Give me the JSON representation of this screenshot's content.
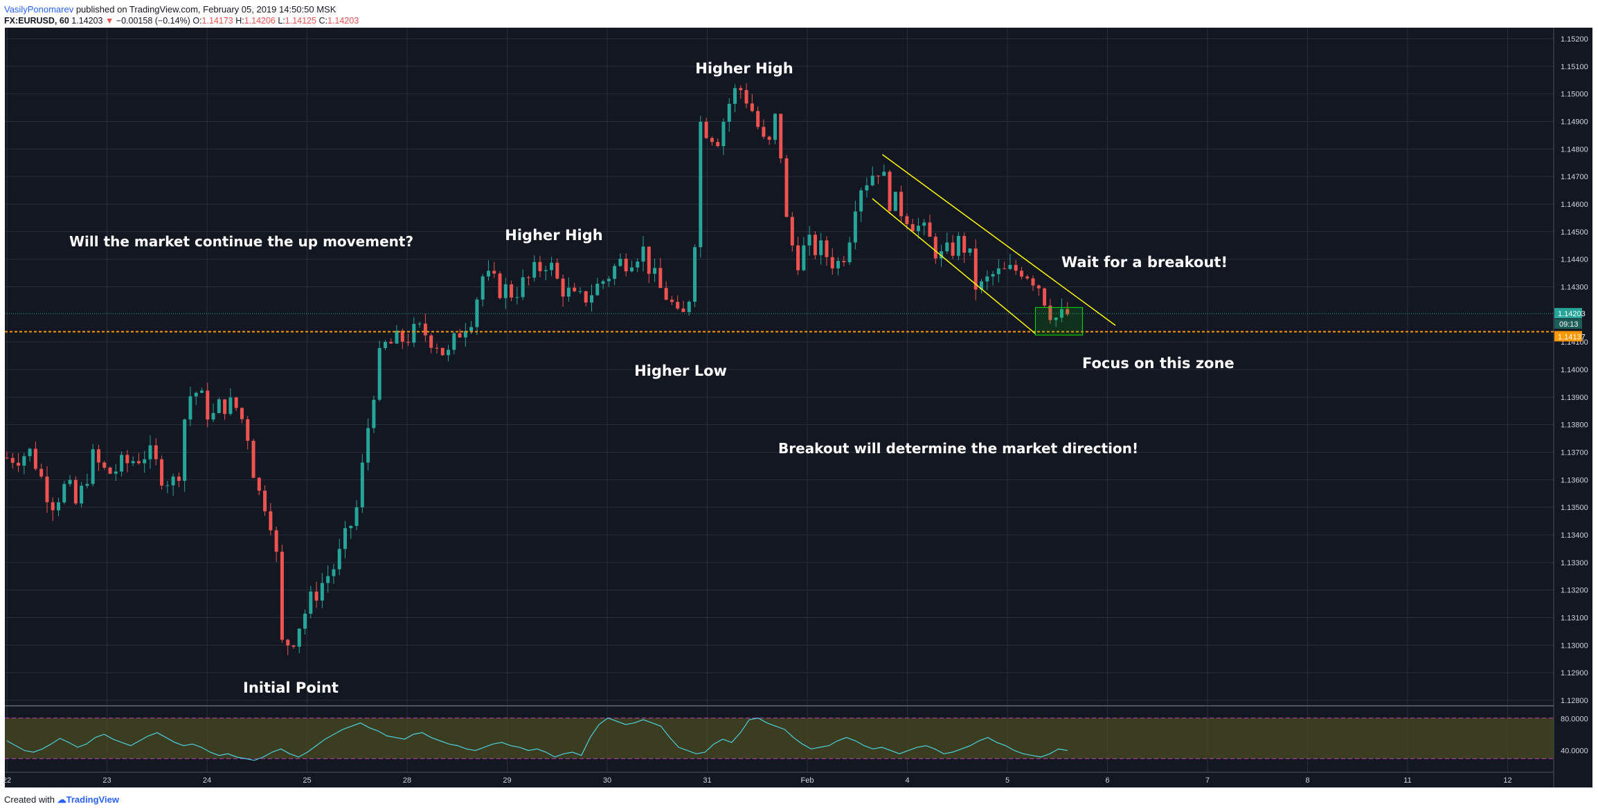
{
  "header": {
    "author": "VasilyPonomarev",
    "published": "published on TradingView.com, February 05, 2019 14:50:50 MSK",
    "symbol": "FX:EURUSD, 60",
    "last": "1.14203",
    "change": "−0.00158 (−0.14%)",
    "o_label": "O:",
    "o": "1.14173",
    "h_label": "H:",
    "h": "1.14206",
    "l_label": "L:",
    "l": "1.14125",
    "c_label": "C:",
    "c": "1.14203"
  },
  "footer": {
    "created_with": "Created with",
    "brand": "TradingView"
  },
  "colors": {
    "background": "#131722",
    "grid": "#2a2e39",
    "up": "#26a69a",
    "down": "#ef5350",
    "channel": "#ffff00",
    "support": "#ff9800",
    "last_price": "#26a69a",
    "zone": "#00e600",
    "rsi_line": "#4dd0e1",
    "rsi_band": "#4b4f1f",
    "rsi_levels": "#c040c0"
  },
  "chart_data": {
    "type": "candlestick",
    "symbol": "FX:EURUSD",
    "interval": "60",
    "y_ticks": [
      "1.15200",
      "1.15100",
      "1.15000",
      "1.14900",
      "1.14800",
      "1.14700",
      "1.14600",
      "1.14500",
      "1.14400",
      "1.14300",
      "1.14100",
      "1.14000",
      "1.13900",
      "1.13800",
      "1.13700",
      "1.13600",
      "1.13500",
      "1.13400",
      "1.13300",
      "1.13200",
      "1.13100",
      "1.13000",
      "1.12900",
      "1.12800"
    ],
    "x_ticks": [
      {
        "label": "22",
        "d": 0
      },
      {
        "label": "23",
        "d": 1
      },
      {
        "label": "24",
        "d": 2
      },
      {
        "label": "25",
        "d": 3
      },
      {
        "label": "28",
        "d": 4
      },
      {
        "label": "29",
        "d": 5
      },
      {
        "label": "30",
        "d": 6
      },
      {
        "label": "31",
        "d": 7
      },
      {
        "label": "Feb",
        "d": 8
      },
      {
        "label": "4",
        "d": 9
      },
      {
        "label": "5",
        "d": 10
      },
      {
        "label": "6",
        "d": 11
      },
      {
        "label": "7",
        "d": 12
      },
      {
        "label": "8",
        "d": 13
      },
      {
        "label": "11",
        "d": 14
      },
      {
        "label": "12",
        "d": 15
      }
    ],
    "ylim": [
      1.1278,
      1.1524
    ],
    "path": [
      [
        0,
        1.1368
      ],
      [
        0.25,
        1.137
      ],
      [
        0.35,
        1.136
      ],
      [
        0.45,
        1.1352
      ],
      [
        0.6,
        1.1358
      ],
      [
        0.7,
        1.135
      ],
      [
        0.85,
        1.1368
      ],
      [
        1.0,
        1.1362
      ],
      [
        1.2,
        1.1366
      ],
      [
        1.4,
        1.137
      ],
      [
        1.55,
        1.1362
      ],
      [
        1.7,
        1.1358
      ],
      [
        1.8,
        1.139
      ],
      [
        1.9,
        1.1392
      ],
      [
        2.05,
        1.1382
      ],
      [
        2.15,
        1.1388
      ],
      [
        2.3,
        1.1386
      ],
      [
        2.4,
        1.1378
      ],
      [
        2.5,
        1.1356
      ],
      [
        2.62,
        1.135
      ],
      [
        2.7,
        1.133
      ],
      [
        2.75,
        1.13
      ],
      [
        2.85,
        1.1302
      ],
      [
        2.95,
        1.131
      ],
      [
        3.1,
        1.132
      ],
      [
        3.3,
        1.133
      ],
      [
        3.5,
        1.135
      ],
      [
        3.65,
        1.139
      ],
      [
        3.75,
        1.1408
      ],
      [
        3.9,
        1.141
      ],
      [
        4.0,
        1.1412
      ],
      [
        4.15,
        1.1414
      ],
      [
        4.3,
        1.141
      ],
      [
        4.4,
        1.1404
      ],
      [
        4.55,
        1.1416
      ],
      [
        4.65,
        1.142
      ],
      [
        4.75,
        1.1434
      ],
      [
        4.9,
        1.143
      ],
      [
        5.05,
        1.1428
      ],
      [
        5.2,
        1.1432
      ],
      [
        5.4,
        1.144
      ],
      [
        5.5,
        1.1432
      ],
      [
        5.7,
        1.1424
      ],
      [
        5.9,
        1.143
      ],
      [
        6.1,
        1.1438
      ],
      [
        6.35,
        1.1444
      ],
      [
        6.5,
        1.143
      ],
      [
        6.62,
        1.1426
      ],
      [
        6.7,
        1.1418
      ],
      [
        6.8,
        1.142
      ],
      [
        6.88,
        1.145
      ],
      [
        6.92,
        1.149
      ],
      [
        7.1,
        1.1484
      ],
      [
        7.25,
        1.15
      ],
      [
        7.35,
        1.1502
      ],
      [
        7.45,
        1.1494
      ],
      [
        7.6,
        1.1478
      ],
      [
        7.7,
        1.1494
      ],
      [
        7.8,
        1.145
      ],
      [
        7.9,
        1.144
      ],
      [
        8.0,
        1.1445
      ],
      [
        8.15,
        1.1443
      ],
      [
        8.3,
        1.1438
      ],
      [
        8.4,
        1.1445
      ],
      [
        8.5,
        1.1466
      ],
      [
        8.62,
        1.147
      ],
      [
        8.72,
        1.1474
      ],
      [
        8.82,
        1.1462
      ],
      [
        9.0,
        1.1456
      ],
      [
        9.2,
        1.1448
      ],
      [
        9.35,
        1.144
      ],
      [
        9.5,
        1.1446
      ],
      [
        9.6,
        1.1444
      ],
      [
        9.7,
        1.1428
      ],
      [
        9.85,
        1.1434
      ],
      [
        10.0,
        1.1435
      ],
      [
        10.15,
        1.1437
      ],
      [
        10.3,
        1.1432
      ],
      [
        10.42,
        1.1422
      ],
      [
        10.5,
        1.1418
      ],
      [
        10.6,
        1.142
      ]
    ],
    "last_price": "1.14203",
    "last_price_time": "09:13",
    "support_level": "1.14137",
    "channel_upper": [
      [
        8.75,
        1.1478
      ],
      [
        11.08,
        1.1416
      ]
    ],
    "channel_lower": [
      [
        8.65,
        1.1462
      ],
      [
        10.28,
        1.1413
      ]
    ],
    "focus_zone": {
      "x0": 10.28,
      "x1": 10.75,
      "y0": 1.14125,
      "y1": 1.14225
    },
    "rsi": {
      "ticks": [
        "80.0000",
        "40.0000"
      ],
      "levels": [
        70,
        30
      ],
      "values": [
        52,
        46,
        40,
        38,
        42,
        48,
        55,
        50,
        44,
        48,
        56,
        60,
        54,
        50,
        46,
        52,
        58,
        62,
        56,
        50,
        46,
        48,
        44,
        38,
        34,
        36,
        32,
        30,
        28,
        32,
        38,
        42,
        36,
        32,
        38,
        46,
        54,
        60,
        66,
        70,
        74,
        68,
        64,
        58,
        56,
        54,
        60,
        62,
        56,
        52,
        48,
        46,
        42,
        40,
        44,
        48,
        50,
        46,
        44,
        40,
        42,
        38,
        32,
        36,
        38,
        34,
        56,
        72,
        80,
        76,
        72,
        74,
        78,
        74,
        70,
        56,
        44,
        40,
        36,
        38,
        48,
        54,
        50,
        62,
        78,
        80,
        74,
        70,
        66,
        56,
        48,
        42,
        44,
        46,
        52,
        56,
        52,
        46,
        42,
        44,
        40,
        36,
        40,
        44,
        46,
        42,
        36,
        38,
        42,
        46,
        52,
        56,
        50,
        46,
        40,
        36,
        34,
        32,
        36,
        42,
        40
      ],
      "x_end": 10.6
    }
  },
  "annotations": [
    {
      "id": "initial-point",
      "text": "Initial Point"
    },
    {
      "id": "higher-high-1",
      "text": "Higher High"
    },
    {
      "id": "higher-high-2",
      "text": "Higher High"
    },
    {
      "id": "higher-low",
      "text": "Higher Low"
    },
    {
      "id": "question",
      "text": "Will the market continue the up movement?"
    },
    {
      "id": "wait",
      "text": "Wait for a breakout!"
    },
    {
      "id": "focus",
      "text": "Focus on this zone"
    },
    {
      "id": "breakout",
      "text": "Breakout will determine the market direction!"
    }
  ]
}
